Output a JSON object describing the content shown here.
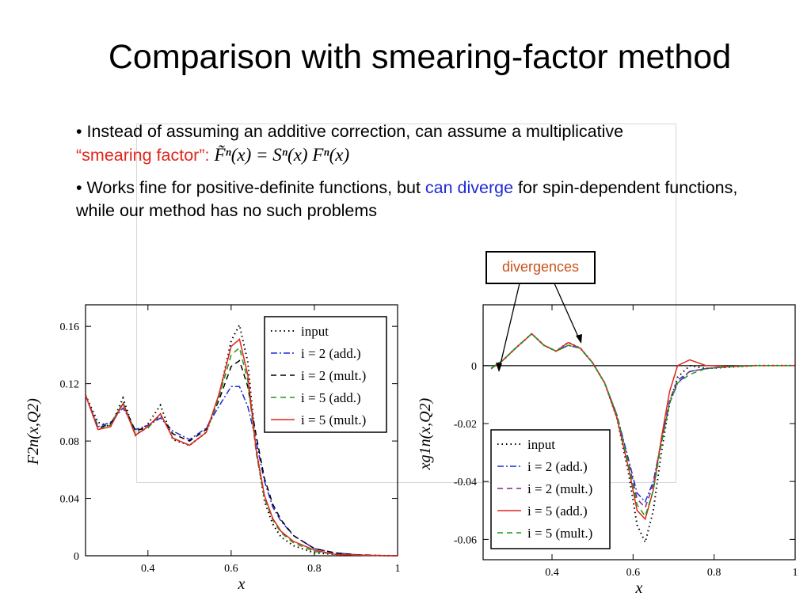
{
  "slide": {
    "title": "Comparison with smearing-factor method",
    "bullet1": {
      "prefix": "• Instead of assuming an additive correction, can assume a multiplicative",
      "highlight": "“smearing factor”:",
      "formula": "F̃ⁿ(x) = Sⁿ(x) Fⁿ(x)"
    },
    "bullet2": {
      "prefix": "• Works fine for positive-definite functions, but ",
      "highlight": "can diverge",
      "suffix": " for spin-dependent functions, while our method has no such problems"
    },
    "callout": "divergences",
    "colors": {
      "red_text": "#e0261c",
      "blue_text": "#1f2bd6",
      "callout_text": "#c8531a"
    }
  },
  "chart_data": [
    {
      "type": "line",
      "xlabel": "x",
      "ylabel": "F2n(x,Q2)",
      "xlim": [
        0.25,
        1.0
      ],
      "ylim": [
        0,
        0.175
      ],
      "xticks": [
        0.4,
        0.6,
        0.8,
        1
      ],
      "xtick_labels": [
        "0.4",
        "0.6",
        "0.8",
        "1"
      ],
      "yticks": [
        0,
        0.04,
        0.08,
        0.12,
        0.16
      ],
      "ytick_labels": [
        "0",
        "0.04",
        "0.08",
        "0.12",
        "0.16"
      ],
      "legend_position": "top-right",
      "series": [
        {
          "name": "input",
          "style": "dotted",
          "color": "#000000",
          "x": [
            0.25,
            0.28,
            0.31,
            0.34,
            0.37,
            0.4,
            0.43,
            0.46,
            0.5,
            0.54,
            0.57,
            0.6,
            0.62,
            0.64,
            0.66,
            0.68,
            0.7,
            0.72,
            0.75,
            0.8,
            0.85,
            0.9,
            0.95,
            1.0
          ],
          "y": [
            0.112,
            0.093,
            0.09,
            0.11,
            0.084,
            0.092,
            0.105,
            0.081,
            0.077,
            0.086,
            0.11,
            0.15,
            0.161,
            0.135,
            0.075,
            0.038,
            0.022,
            0.013,
            0.007,
            0.002,
            0.001,
            0.0004,
            0.0001,
            0
          ]
        },
        {
          "name": "i = 2 (add.)",
          "style": "dashdot",
          "color": "#1f2bd6",
          "x": [
            0.25,
            0.28,
            0.31,
            0.34,
            0.37,
            0.4,
            0.43,
            0.46,
            0.5,
            0.54,
            0.57,
            0.6,
            0.62,
            0.64,
            0.66,
            0.68,
            0.7,
            0.72,
            0.75,
            0.8,
            0.85,
            0.9,
            0.95,
            1.0
          ],
          "y": [
            0.112,
            0.09,
            0.093,
            0.103,
            0.088,
            0.091,
            0.096,
            0.087,
            0.081,
            0.089,
            0.104,
            0.118,
            0.118,
            0.104,
            0.08,
            0.052,
            0.034,
            0.024,
            0.014,
            0.005,
            0.002,
            0.0008,
            0.0002,
            0
          ]
        },
        {
          "name": "i = 2 (mult.)",
          "style": "dashed",
          "color": "#000000",
          "x": [
            0.25,
            0.28,
            0.31,
            0.34,
            0.37,
            0.4,
            0.43,
            0.46,
            0.5,
            0.54,
            0.57,
            0.6,
            0.62,
            0.64,
            0.66,
            0.68,
            0.7,
            0.72,
            0.75,
            0.8,
            0.85,
            0.9,
            0.95,
            1.0
          ],
          "y": [
            0.112,
            0.089,
            0.092,
            0.106,
            0.087,
            0.09,
            0.098,
            0.085,
            0.08,
            0.088,
            0.108,
            0.132,
            0.136,
            0.118,
            0.084,
            0.054,
            0.036,
            0.025,
            0.014,
            0.005,
            0.002,
            0.0008,
            0.0002,
            0
          ]
        },
        {
          "name": "i = 5 (add.)",
          "style": "dashed",
          "color": "#1a9a1a",
          "x": [
            0.25,
            0.28,
            0.31,
            0.34,
            0.37,
            0.4,
            0.43,
            0.46,
            0.5,
            0.54,
            0.57,
            0.6,
            0.62,
            0.64,
            0.66,
            0.68,
            0.7,
            0.72,
            0.75,
            0.8,
            0.85,
            0.9,
            0.95,
            1.0
          ],
          "y": [
            0.112,
            0.088,
            0.091,
            0.107,
            0.085,
            0.089,
            0.099,
            0.082,
            0.077,
            0.086,
            0.11,
            0.14,
            0.145,
            0.122,
            0.072,
            0.04,
            0.025,
            0.016,
            0.009,
            0.003,
            0.001,
            0.0005,
            0.0001,
            0
          ]
        },
        {
          "name": "i = 5 (mult.)",
          "style": "solid",
          "color": "#e0261c",
          "x": [
            0.25,
            0.28,
            0.31,
            0.34,
            0.37,
            0.4,
            0.43,
            0.46,
            0.5,
            0.54,
            0.57,
            0.6,
            0.62,
            0.64,
            0.66,
            0.68,
            0.7,
            0.72,
            0.75,
            0.8,
            0.85,
            0.9,
            0.95,
            1.0
          ],
          "y": [
            0.112,
            0.088,
            0.09,
            0.106,
            0.084,
            0.09,
            0.099,
            0.082,
            0.077,
            0.086,
            0.112,
            0.146,
            0.151,
            0.126,
            0.074,
            0.042,
            0.026,
            0.017,
            0.01,
            0.004,
            0.001,
            0.0005,
            0.0001,
            0
          ]
        }
      ]
    },
    {
      "type": "line",
      "xlabel": "x",
      "ylabel": "xg1n(x,Q2)",
      "xlim": [
        0.23,
        1.0
      ],
      "ylim": [
        -0.067,
        0.021
      ],
      "xticks": [
        0.4,
        0.6,
        0.8,
        1
      ],
      "xtick_labels": [
        "0.4",
        "0.6",
        "0.8",
        "1"
      ],
      "yticks": [
        -0.06,
        -0.04,
        -0.02,
        0
      ],
      "ytick_labels": [
        "-0.06",
        "-0.04",
        "-0.02",
        "0"
      ],
      "zero_line": true,
      "legend_position": "bottom-left",
      "series": [
        {
          "name": "input",
          "style": "dotted",
          "color": "#000000",
          "x": [
            0.25,
            0.28,
            0.31,
            0.35,
            0.38,
            0.41,
            0.44,
            0.47,
            0.5,
            0.53,
            0.56,
            0.59,
            0.61,
            0.63,
            0.65,
            0.67,
            0.69,
            0.71,
            0.74,
            0.78,
            0.84,
            0.9,
            1.0
          ],
          "y": [
            -0.001,
            0.002,
            0.006,
            0.011,
            0.007,
            0.005,
            0.008,
            0.006,
            0.001,
            -0.006,
            -0.018,
            -0.038,
            -0.055,
            -0.061,
            -0.05,
            -0.03,
            -0.013,
            -0.004,
            0.0,
            -0.001,
            -0.0005,
            0,
            0
          ]
        },
        {
          "name": "i = 2 (add.)",
          "style": "dashdot",
          "color": "#1f2bd6",
          "x": [
            0.25,
            0.28,
            0.31,
            0.35,
            0.38,
            0.41,
            0.44,
            0.47,
            0.5,
            0.53,
            0.56,
            0.59,
            0.61,
            0.63,
            0.65,
            0.67,
            0.69,
            0.71,
            0.74,
            0.78,
            0.84,
            0.9,
            1.0
          ],
          "y": [
            -0.001,
            0.002,
            0.006,
            0.011,
            0.007,
            0.005,
            0.007,
            0.006,
            0.001,
            -0.006,
            -0.017,
            -0.033,
            -0.044,
            -0.047,
            -0.04,
            -0.026,
            -0.013,
            -0.006,
            -0.002,
            -0.001,
            -0.0003,
            0,
            0
          ]
        },
        {
          "name": "i = 2 (mult.)",
          "style": "dashed",
          "color": "#7a2a7a",
          "x": [
            0.25,
            0.28,
            0.31,
            0.35,
            0.38,
            0.41,
            0.44,
            0.47,
            0.5,
            0.53,
            0.56,
            0.59,
            0.61,
            0.63,
            0.65,
            0.67,
            0.69,
            0.71,
            0.74,
            0.78,
            0.84,
            0.9,
            1.0
          ],
          "y": [
            -0.001,
            0.002,
            0.006,
            0.011,
            0.007,
            0.005,
            0.007,
            0.006,
            0.001,
            -0.006,
            -0.017,
            -0.034,
            -0.046,
            -0.049,
            -0.041,
            -0.026,
            -0.012,
            -0.005,
            -0.002,
            -0.001,
            -0.0003,
            0,
            0
          ]
        },
        {
          "name": "i = 5 (add.)",
          "style": "solid",
          "color": "#e0261c",
          "x": [
            0.25,
            0.28,
            0.31,
            0.35,
            0.38,
            0.41,
            0.44,
            0.47,
            0.5,
            0.53,
            0.56,
            0.59,
            0.61,
            0.63,
            0.65,
            0.67,
            0.69,
            0.71,
            0.74,
            0.78,
            0.84,
            0.9,
            1.0
          ],
          "y": [
            -0.001,
            0.002,
            0.006,
            0.011,
            0.007,
            0.005,
            0.008,
            0.006,
            0.001,
            -0.006,
            -0.018,
            -0.036,
            -0.05,
            -0.053,
            -0.043,
            -0.025,
            -0.009,
            0.0,
            0.002,
            0.0,
            -0.0003,
            0,
            0
          ]
        },
        {
          "name": "i = 5 (mult.)",
          "style": "dashed",
          "color": "#1a9a1a",
          "x": [
            0.25,
            0.28,
            0.31,
            0.35,
            0.38,
            0.41,
            0.44,
            0.47,
            0.5,
            0.53,
            0.56,
            0.59,
            0.61,
            0.63,
            0.65,
            0.67,
            0.69,
            0.71,
            0.74,
            0.78,
            0.84,
            0.9,
            1.0
          ],
          "y": [
            -0.001,
            0.002,
            0.006,
            0.011,
            0.007,
            0.005,
            0.007,
            0.006,
            0.001,
            -0.006,
            -0.017,
            -0.035,
            -0.048,
            -0.052,
            -0.043,
            -0.027,
            -0.013,
            -0.006,
            -0.003,
            -0.001,
            -0.0004,
            0,
            0
          ]
        }
      ]
    }
  ]
}
